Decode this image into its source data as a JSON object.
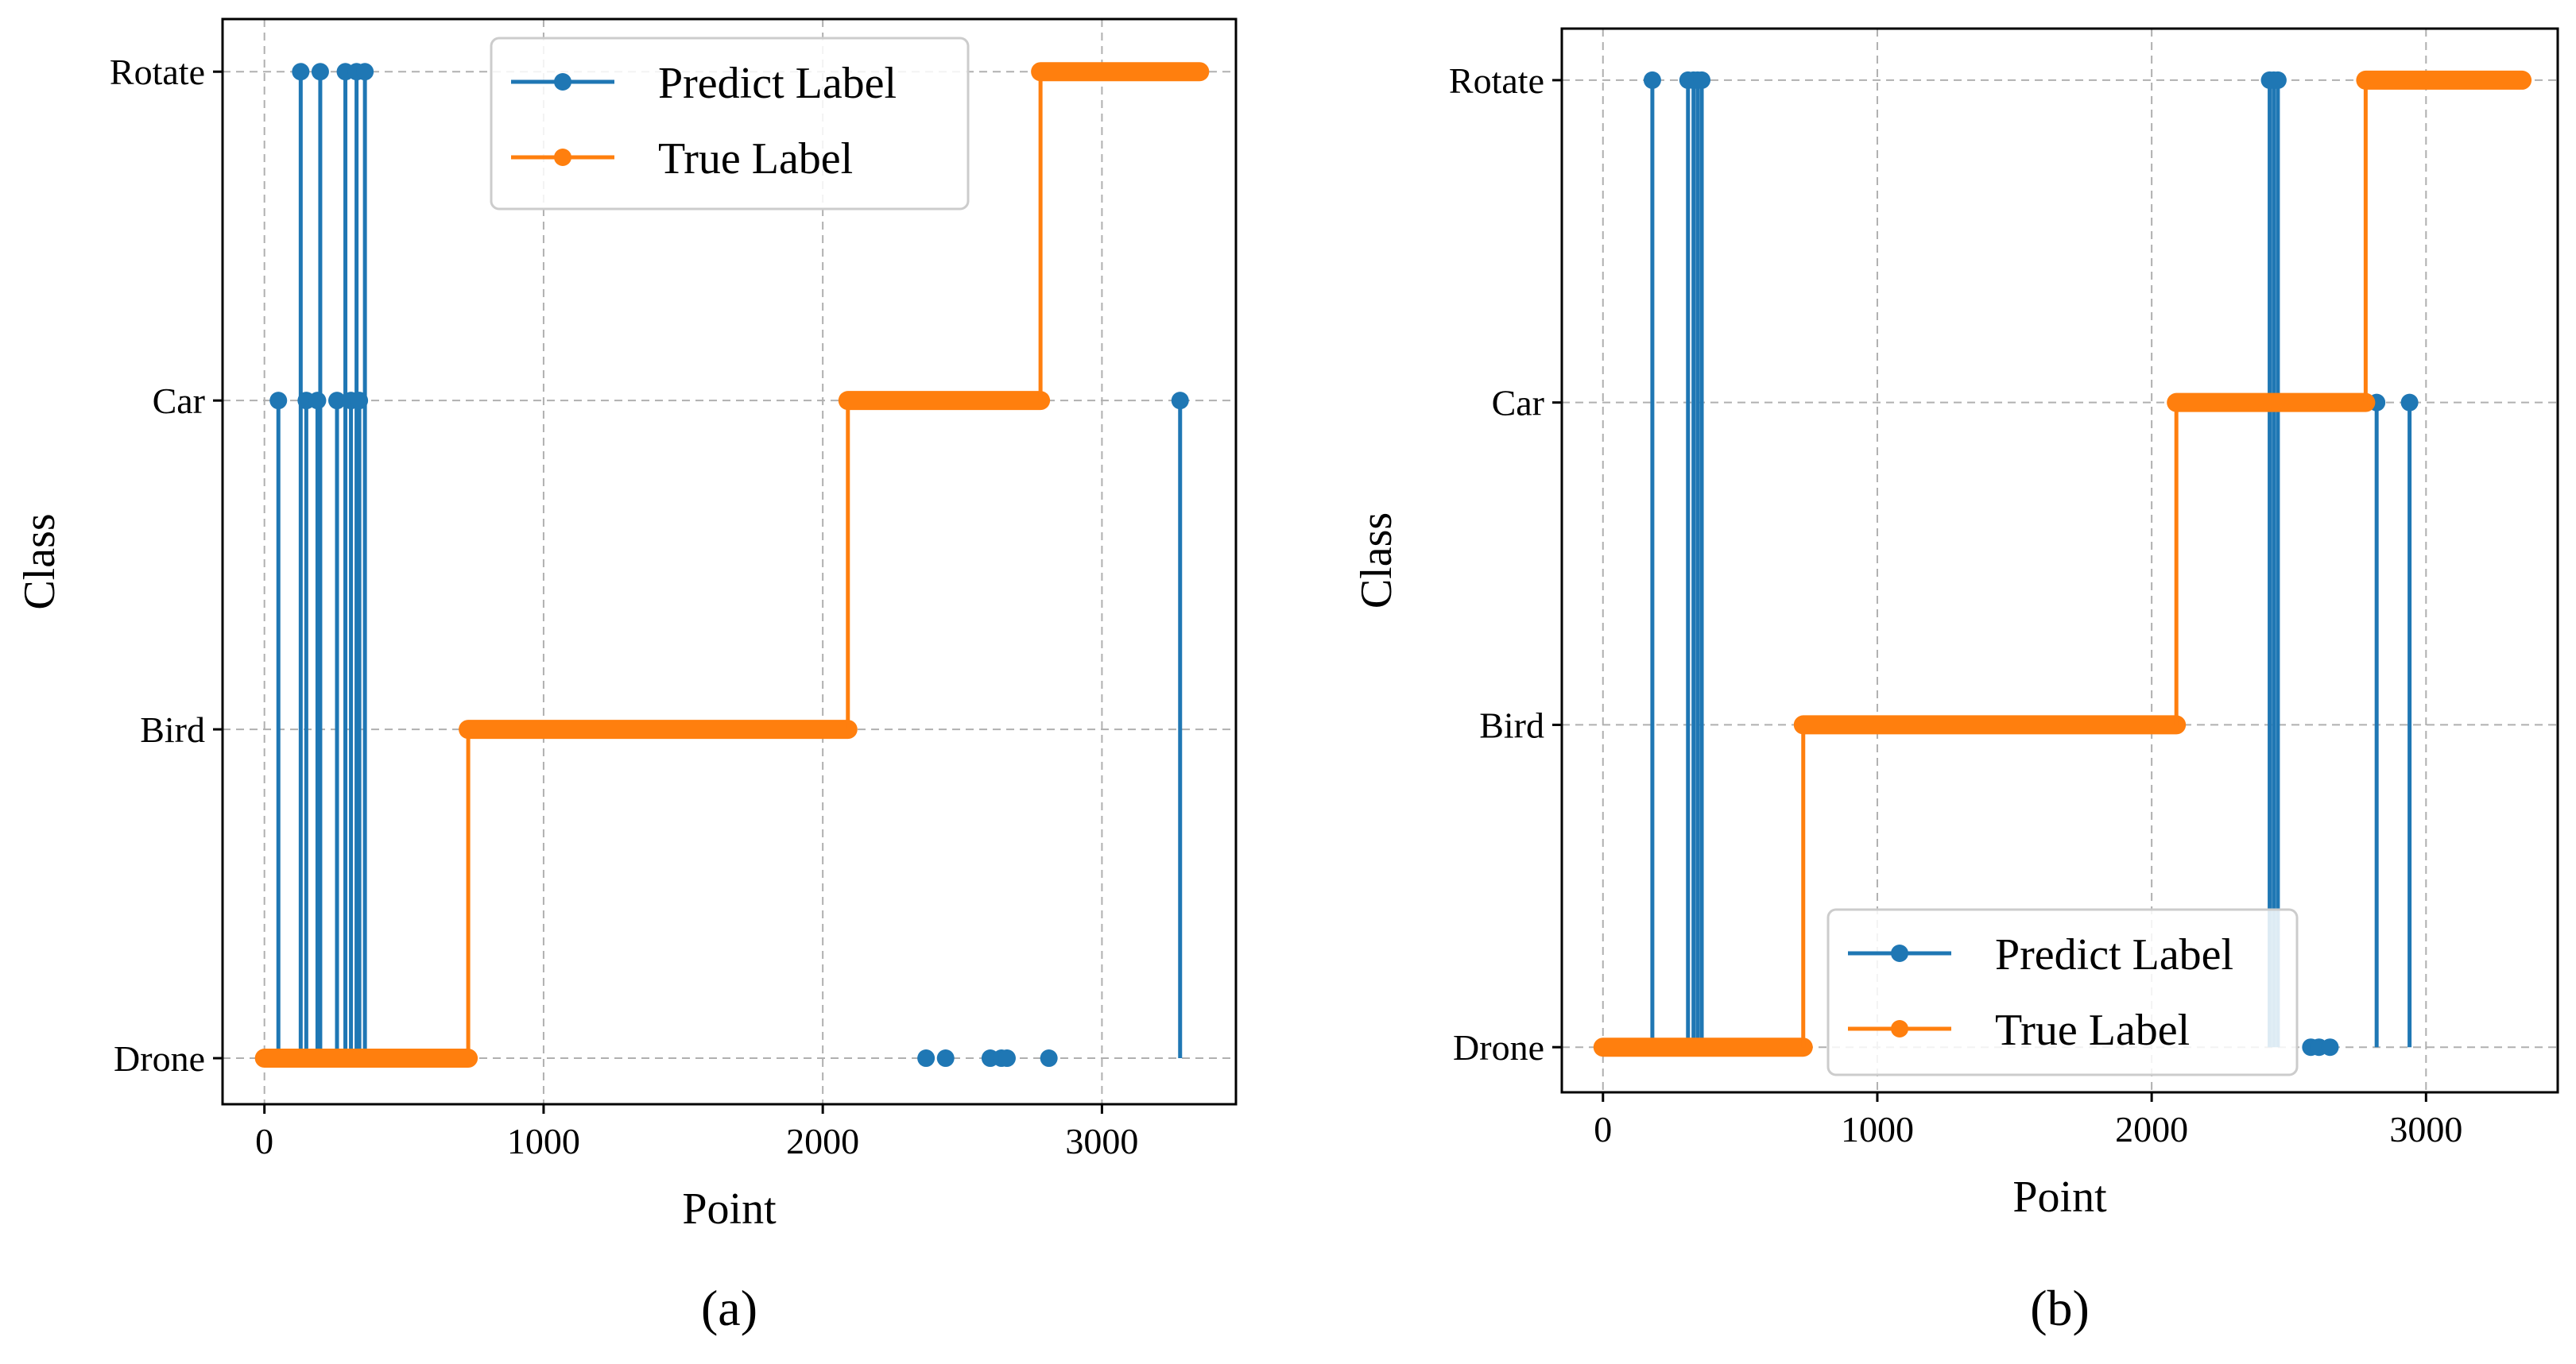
{
  "colors": {
    "predict": "#1f77b4",
    "true": "#ff7f0e"
  },
  "chart_data": [
    {
      "type": "line",
      "panel_label": "(a)",
      "xlabel": "Point",
      "ylabel": "Class",
      "xlim": [
        -150,
        3480
      ],
      "ylim": [
        -0.14,
        3.16
      ],
      "xticks": [
        0,
        1000,
        2000,
        3000
      ],
      "xtick_labels": [
        "0",
        "1000",
        "2000",
        "3000"
      ],
      "yticks": [
        0,
        1,
        2,
        3
      ],
      "ytick_labels": [
        "Drone",
        "Bird",
        "Car",
        "Rotate"
      ],
      "grid": true,
      "legend": "top-center",
      "series": [
        {
          "name": "Predict Label",
          "markers": [
            [
              0,
              0
            ],
            [
              30,
              0
            ],
            [
              50,
              2
            ],
            [
              60,
              0
            ],
            [
              100,
              0
            ],
            [
              130,
              3
            ],
            [
              140,
              0
            ],
            [
              150,
              2
            ],
            [
              170,
              0
            ],
            [
              190,
              2
            ],
            [
              200,
              3
            ],
            [
              210,
              0
            ],
            [
              240,
              0
            ],
            [
              260,
              2
            ],
            [
              280,
              0
            ],
            [
              290,
              3
            ],
            [
              300,
              0
            ],
            [
              310,
              2
            ],
            [
              320,
              0
            ],
            [
              330,
              3
            ],
            [
              340,
              2
            ],
            [
              350,
              0
            ],
            [
              360,
              3
            ],
            [
              370,
              0
            ],
            [
              400,
              0
            ],
            [
              500,
              0
            ],
            [
              600,
              0
            ],
            [
              700,
              0
            ],
            [
              2370,
              0
            ],
            [
              2440,
              0
            ],
            [
              2600,
              0
            ],
            [
              2640,
              0
            ],
            [
              2660,
              0
            ],
            [
              2810,
              0
            ],
            [
              3280,
              2
            ]
          ],
          "spikes": [
            {
              "x": 50,
              "to": 2
            },
            {
              "x": 130,
              "to": 3
            },
            {
              "x": 150,
              "to": 2
            },
            {
              "x": 190,
              "to": 2
            },
            {
              "x": 200,
              "to": 3
            },
            {
              "x": 260,
              "to": 2
            },
            {
              "x": 290,
              "to": 3
            },
            {
              "x": 310,
              "to": 2
            },
            {
              "x": 330,
              "to": 3
            },
            {
              "x": 340,
              "to": 2
            },
            {
              "x": 360,
              "to": 3
            },
            {
              "x": 2370,
              "to": 0
            },
            {
              "x": 2440,
              "to": 0
            },
            {
              "x": 2600,
              "to": 0
            },
            {
              "x": 2640,
              "to": 0
            },
            {
              "x": 2660,
              "to": 0
            },
            {
              "x": 2810,
              "to": 0
            },
            {
              "x": 3280,
              "to": 2
            }
          ]
        },
        {
          "name": "True Label",
          "segments": [
            {
              "x0": 0,
              "x1": 730,
              "y": 0
            },
            {
              "x0": 730,
              "x1": 2090,
              "y": 1
            },
            {
              "x0": 2090,
              "x1": 2780,
              "y": 2
            },
            {
              "x0": 2780,
              "x1": 3350,
              "y": 3
            }
          ]
        }
      ]
    },
    {
      "type": "line",
      "panel_label": "(b)",
      "xlabel": "Point",
      "ylabel": "Class",
      "xlim": [
        -150,
        3480
      ],
      "ylim": [
        -0.14,
        3.16
      ],
      "xticks": [
        0,
        1000,
        2000,
        3000
      ],
      "xtick_labels": [
        "0",
        "1000",
        "2000",
        "3000"
      ],
      "yticks": [
        0,
        1,
        2,
        3
      ],
      "ytick_labels": [
        "Drone",
        "Bird",
        "Car",
        "Rotate"
      ],
      "grid": true,
      "legend": "lower-center",
      "series": [
        {
          "name": "Predict Label",
          "markers": [
            [
              180,
              3
            ],
            [
              310,
              3
            ],
            [
              330,
              3
            ],
            [
              345,
              3
            ],
            [
              360,
              3
            ],
            [
              2430,
              3
            ],
            [
              2445,
              3
            ],
            [
              2460,
              3
            ],
            [
              2580,
              0
            ],
            [
              2610,
              0
            ],
            [
              2650,
              0
            ],
            [
              2820,
              2
            ],
            [
              2940,
              2
            ]
          ],
          "spikes": [
            {
              "x": 180,
              "to": 3
            },
            {
              "x": 310,
              "to": 3
            },
            {
              "x": 330,
              "to": 3
            },
            {
              "x": 345,
              "to": 3
            },
            {
              "x": 360,
              "to": 3
            },
            {
              "x": 2430,
              "to": 3
            },
            {
              "x": 2445,
              "to": 3
            },
            {
              "x": 2460,
              "to": 3
            },
            {
              "x": 2580,
              "to": 0
            },
            {
              "x": 2610,
              "to": 0
            },
            {
              "x": 2650,
              "to": 0
            },
            {
              "x": 2820,
              "to": 2
            },
            {
              "x": 2940,
              "to": 2
            }
          ]
        },
        {
          "name": "True Label",
          "segments": [
            {
              "x0": 0,
              "x1": 730,
              "y": 0
            },
            {
              "x0": 730,
              "x1": 2090,
              "y": 1
            },
            {
              "x0": 2090,
              "x1": 2780,
              "y": 2
            },
            {
              "x0": 2780,
              "x1": 3350,
              "y": 3
            }
          ]
        }
      ]
    }
  ]
}
